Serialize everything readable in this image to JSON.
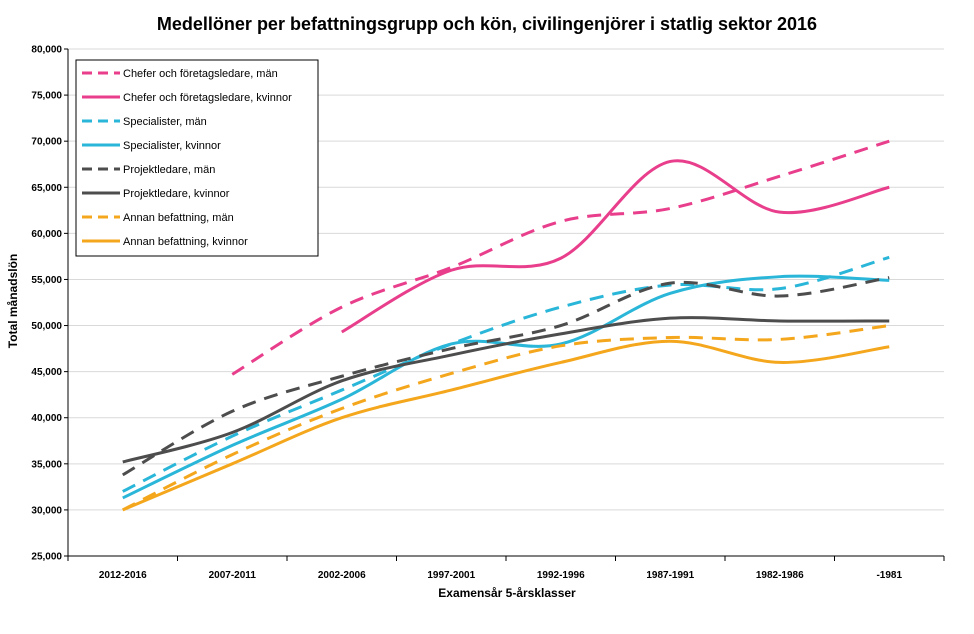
{
  "chart_data": {
    "type": "line",
    "title": "Medellöner per befattningsgrupp och kön, civilingenjörer i statlig sektor 2016",
    "xlabel": "Examensår 5-årsklasser",
    "ylabel": "Total månadslön",
    "categories": [
      "2012-2016",
      "2007-2011",
      "2002-2006",
      "1997-2001",
      "1992-1996",
      "1987-1991",
      "1982-1986",
      "-1981"
    ],
    "ylim": [
      25000,
      80000
    ],
    "yticks": [
      25000,
      30000,
      35000,
      40000,
      45000,
      50000,
      55000,
      60000,
      65000,
      70000,
      75000,
      80000
    ],
    "ytick_labels": [
      "25,000",
      "30,000",
      "35,000",
      "40,000",
      "45,000",
      "50,000",
      "55,000",
      "60,000",
      "65,000",
      "70,000",
      "75,000",
      "80,000"
    ],
    "grid": "horizontal",
    "legend_position": "top-left",
    "series": [
      {
        "name": "Chefer och företagsledare, män",
        "color": "#e83e8c",
        "dash": true,
        "values": [
          null,
          44700,
          52000,
          56300,
          61300,
          62700,
          66200,
          70000
        ]
      },
      {
        "name": "Chefer och företagsledare, kvinnor",
        "color": "#e83e8c",
        "dash": false,
        "values": [
          null,
          null,
          49300,
          56000,
          57300,
          67800,
          62300,
          65000
        ]
      },
      {
        "name": "Specialister, män",
        "color": "#29b6d8",
        "dash": true,
        "values": [
          32000,
          38000,
          43000,
          48000,
          52000,
          54400,
          54000,
          57400
        ]
      },
      {
        "name": "Specialister, kvinnor",
        "color": "#29b6d8",
        "dash": false,
        "values": [
          31300,
          37000,
          42000,
          48000,
          48000,
          53500,
          55300,
          54900
        ]
      },
      {
        "name": "Projektledare, män",
        "color": "#4d4d4d",
        "dash": true,
        "values": [
          33800,
          40700,
          44500,
          47500,
          50000,
          54600,
          53200,
          55200
        ]
      },
      {
        "name": "Projektledare, kvinnor",
        "color": "#4d4d4d",
        "dash": false,
        "values": [
          35200,
          38400,
          44000,
          46800,
          49100,
          50800,
          50500,
          50500
        ]
      },
      {
        "name": "Annan befattning, män",
        "color": "#f4a71d",
        "dash": true,
        "values": [
          30000,
          36000,
          41000,
          44800,
          47800,
          48700,
          48500,
          50000
        ]
      },
      {
        "name": "Annan befattning, kvinnor",
        "color": "#f4a71d",
        "dash": false,
        "values": [
          30000,
          35000,
          40000,
          43000,
          46000,
          48300,
          46000,
          47700
        ]
      }
    ]
  }
}
